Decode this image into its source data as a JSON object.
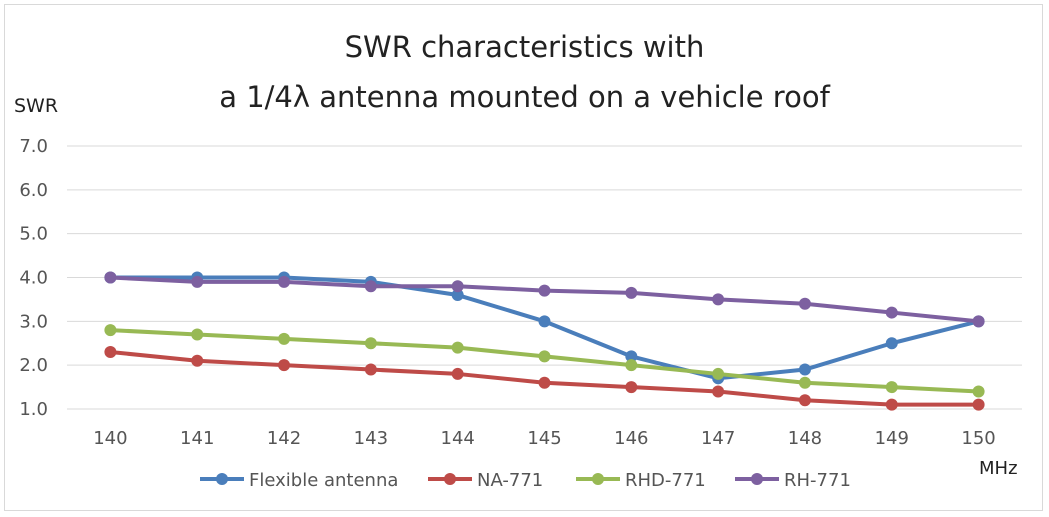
{
  "chart_data": {
    "type": "line",
    "title_line1": "SWR characteristics with",
    "title_line2": "a 1/4λ antenna mounted on a vehicle roof",
    "ylabel": "SWR",
    "xlabel": "MHz",
    "x": [
      "140",
      "141",
      "142",
      "143",
      "144",
      "145",
      "146",
      "147",
      "148",
      "149",
      "150"
    ],
    "ylim": [
      1.0,
      7.0
    ],
    "yticks": [
      "1.0",
      "2.0",
      "3.0",
      "4.0",
      "5.0",
      "6.0",
      "7.0"
    ],
    "grid": true,
    "legend_position": "bottom",
    "series": [
      {
        "name": "Flexible antenna",
        "color": "#4a7ebb",
        "values": [
          4.0,
          4.0,
          4.0,
          3.9,
          3.6,
          3.0,
          2.2,
          1.7,
          1.9,
          2.5,
          3.0
        ]
      },
      {
        "name": "NA-771",
        "color": "#be4b48",
        "values": [
          2.3,
          2.1,
          2.0,
          1.9,
          1.8,
          1.6,
          1.5,
          1.4,
          1.2,
          1.1,
          1.1
        ]
      },
      {
        "name": "RHD-771",
        "color": "#98b954",
        "values": [
          2.8,
          2.7,
          2.6,
          2.5,
          2.4,
          2.2,
          2.0,
          1.8,
          1.6,
          1.5,
          1.4
        ]
      },
      {
        "name": "RH-771",
        "color": "#7d60a0",
        "values": [
          4.0,
          3.9,
          3.9,
          3.8,
          3.8,
          3.7,
          3.65,
          3.5,
          3.4,
          3.2,
          3.0
        ]
      }
    ]
  }
}
